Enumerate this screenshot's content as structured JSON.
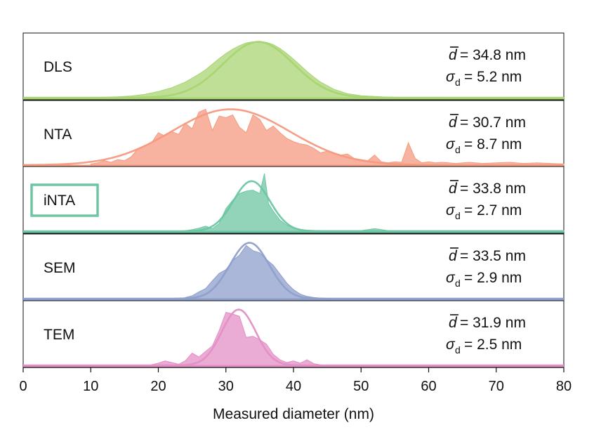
{
  "chart_data": {
    "type": "area",
    "xlabel": "Measured diameter (nm)",
    "xlim": [
      0,
      80
    ],
    "x_ticks": [
      "0",
      "10",
      "20",
      "30",
      "40",
      "50",
      "60",
      "70",
      "80"
    ],
    "x_tick_values": [
      0,
      10,
      20,
      30,
      40,
      50,
      60,
      70,
      80
    ],
    "grid": false,
    "panels": [
      {
        "name": "DLS",
        "color": "#a8d472",
        "boxed_label": false,
        "mean_text": "= 34.8 nm",
        "sd_text": "= 5.2 nm",
        "fit_mean": 34.8,
        "fit_sd": 5.2,
        "ylim": [
          0,
          1.12
        ],
        "hist_x": [
          10,
          12,
          14,
          16,
          18,
          20,
          22,
          24,
          26,
          27,
          28,
          29,
          30,
          31,
          32,
          33,
          34,
          35,
          36,
          37,
          38,
          39,
          40,
          41,
          42,
          43,
          44,
          46,
          48,
          50,
          54,
          58,
          62,
          66,
          70,
          74,
          78,
          80
        ],
        "hist_y": [
          0.004,
          0.008,
          0.015,
          0.03,
          0.06,
          0.11,
          0.18,
          0.28,
          0.42,
          0.5,
          0.6,
          0.7,
          0.79,
          0.87,
          0.93,
          0.98,
          1.0,
          1.0,
          0.99,
          0.95,
          0.88,
          0.79,
          0.69,
          0.58,
          0.47,
          0.37,
          0.28,
          0.15,
          0.07,
          0.035,
          0.01,
          0.004,
          0.002,
          0.001,
          0.001,
          0.001,
          0.001,
          0.001
        ]
      },
      {
        "name": "NTA",
        "color": "#f59a80",
        "boxed_label": false,
        "mean_text": "= 30.7 nm",
        "sd_text": "= 8.7 nm",
        "fit_mean": 30.7,
        "fit_sd": 8.7,
        "ylim": [
          0,
          1.12
        ],
        "hist_x": [
          10,
          11,
          12,
          13,
          14,
          15,
          16,
          17,
          18,
          19,
          20,
          21,
          22,
          23,
          24,
          25,
          26,
          27,
          28,
          29,
          30,
          31,
          32,
          33,
          34,
          35,
          36,
          37,
          38,
          39,
          40,
          41,
          42,
          43,
          44,
          45,
          46,
          47,
          48,
          49,
          50,
          51,
          52,
          53,
          54,
          55,
          56,
          57,
          58,
          59,
          60,
          61,
          62,
          64,
          66,
          68,
          70,
          72,
          74,
          76,
          78,
          80
        ],
        "hist_y": [
          0.02,
          0.04,
          0.08,
          0.05,
          0.1,
          0.08,
          0.15,
          0.3,
          0.35,
          0.4,
          0.58,
          0.52,
          0.6,
          0.55,
          0.75,
          0.65,
          0.95,
          1.0,
          0.62,
          0.88,
          0.85,
          0.9,
          0.68,
          0.58,
          0.9,
          0.82,
          0.62,
          0.7,
          0.58,
          0.48,
          0.42,
          0.38,
          0.36,
          0.3,
          0.22,
          0.25,
          0.2,
          0.18,
          0.2,
          0.12,
          0.1,
          0.08,
          0.18,
          0.06,
          0.04,
          0.06,
          0.05,
          0.4,
          0.12,
          0.04,
          0.06,
          0.04,
          0.05,
          0.03,
          0.05,
          0.03,
          0.04,
          0.05,
          0.03,
          0.04,
          0.03,
          0.02
        ]
      },
      {
        "name": "iNTA",
        "color": "#6cc6a3",
        "boxed_label": true,
        "mean_text": "= 33.8 nm",
        "sd_text": "= 2.7 nm",
        "fit_mean": 33.8,
        "fit_sd": 2.7,
        "ylim": [
          0,
          1.25
        ],
        "hist_x": [
          24,
          25,
          26,
          27,
          28,
          29,
          30,
          31,
          32,
          33,
          34,
          35,
          35.7,
          36.3,
          37,
          38,
          39,
          40,
          41,
          42,
          44,
          46,
          48,
          50,
          52,
          54,
          58,
          62,
          66,
          70,
          74,
          78,
          80
        ],
        "hist_y": [
          0.01,
          0.03,
          0.06,
          0.1,
          0.05,
          0.15,
          0.45,
          0.62,
          0.75,
          0.8,
          0.82,
          0.75,
          1.15,
          0.55,
          0.4,
          0.22,
          0.12,
          0.06,
          0.03,
          0.02,
          0.01,
          0.01,
          0.01,
          0.01,
          0.05,
          0.01,
          0.01,
          0.01,
          0.01,
          0.01,
          0.01,
          0.01,
          0.01
        ]
      },
      {
        "name": "SEM",
        "color": "#8e9fcc",
        "boxed_label": false,
        "mean_text": "= 33.5 nm",
        "sd_text": "= 2.9 nm",
        "fit_mean": 33.5,
        "fit_sd": 2.9,
        "ylim": [
          0,
          1.12
        ],
        "hist_x": [
          24,
          25,
          26,
          27,
          28,
          29,
          30,
          31,
          32,
          33,
          34,
          35,
          36,
          37,
          38,
          39,
          40,
          41,
          42,
          43,
          44,
          46
        ],
        "hist_y": [
          0.02,
          0.05,
          0.12,
          0.18,
          0.32,
          0.45,
          0.52,
          0.68,
          0.78,
          0.95,
          0.86,
          0.82,
          0.7,
          0.6,
          0.44,
          0.28,
          0.16,
          0.08,
          0.04,
          0.02,
          0.01,
          0.0
        ]
      },
      {
        "name": "TEM",
        "color": "#e38fc5",
        "boxed_label": false,
        "mean_text": "= 31.9 nm",
        "sd_text": "= 2.5 nm",
        "fit_mean": 31.9,
        "fit_sd": 2.5,
        "ylim": [
          0,
          1.12
        ],
        "hist_x": [
          19,
          20,
          21,
          22,
          23,
          24,
          25,
          26,
          27,
          28,
          29,
          30,
          31,
          32,
          33,
          34,
          35,
          36,
          37,
          38,
          39,
          40,
          41,
          42,
          43,
          44
        ],
        "hist_y": [
          0.01,
          0.04,
          0.08,
          0.05,
          0.02,
          0.08,
          0.22,
          0.15,
          0.25,
          0.35,
          0.62,
          0.95,
          0.92,
          0.88,
          0.5,
          0.52,
          0.46,
          0.38,
          0.2,
          0.1,
          0.05,
          0.08,
          0.04,
          0.1,
          0.03,
          0.01
        ]
      }
    ]
  }
}
